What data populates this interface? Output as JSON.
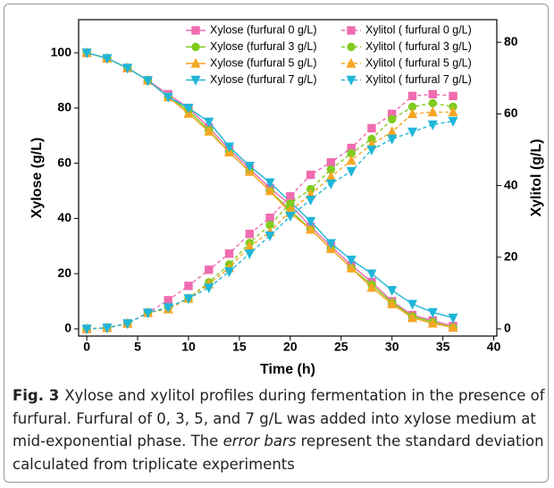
{
  "chart_data": {
    "type": "line",
    "xlabel": "Time (h)",
    "ylabel": "Xylose (g/L)",
    "y2label": "Xylitol (g/L)",
    "x": [
      0,
      2,
      4,
      6,
      8,
      10,
      12,
      14,
      16,
      18,
      20,
      22,
      24,
      26,
      28,
      30,
      32,
      34,
      36
    ],
    "xlim": [
      -0.8,
      40.3
    ],
    "xticks": [
      0,
      5,
      10,
      15,
      20,
      25,
      30,
      35,
      40
    ],
    "ylim": [
      -2.6,
      112
    ],
    "yticks": [
      0,
      20,
      40,
      60,
      80,
      100
    ],
    "y2lim": [
      -2,
      86.3
    ],
    "y2ticks": [
      0,
      20,
      40,
      60,
      80
    ],
    "series": [
      {
        "name": "Xylose (furfural 0 g/L)",
        "color": "#f06bb0",
        "marker": "square",
        "dash": false,
        "values": [
          100,
          98,
          94.5,
          90,
          85,
          80,
          73,
          65,
          58,
          51,
          45,
          37,
          30,
          23,
          17,
          10,
          5,
          3,
          1
        ]
      },
      {
        "name": "Xylose (furfural 3 g/L)",
        "color": "#7fcc1f",
        "marker": "circle",
        "dash": false,
        "values": [
          100,
          98,
          94.5,
          90,
          84,
          79,
          72,
          64,
          57,
          50,
          43,
          36,
          29,
          22,
          16,
          9.5,
          4.5,
          2.5,
          0.5
        ]
      },
      {
        "name": "Xylose (furfural 5 g/L)",
        "color": "#f5a623",
        "marker": "triangle-up",
        "dash": false,
        "values": [
          100,
          98,
          94.5,
          90,
          84,
          78,
          71.5,
          64,
          57,
          50,
          42,
          36,
          29,
          22,
          15,
          9,
          4,
          2,
          0.5
        ]
      },
      {
        "name": "Xylose (furfural 7 g/L)",
        "color": "#1fb6d8",
        "marker": "triangle-down",
        "dash": false,
        "values": [
          100,
          98,
          94.5,
          90,
          84,
          80,
          75,
          66,
          59,
          53,
          46,
          39,
          31,
          25,
          20,
          14,
          9,
          6,
          4
        ]
      },
      {
        "name": "Xylitol ( furfural 0 g/L)",
        "color": "#f06bb0",
        "marker": "square",
        "dash": true,
        "axis": "y2",
        "values": [
          0,
          0.3,
          1.5,
          4.5,
          8,
          12,
          16.5,
          21,
          26.5,
          31,
          37,
          43,
          46.5,
          50.5,
          56,
          60,
          65,
          65.5,
          65
        ]
      },
      {
        "name": "Xylitol ( furfural 3 g/L)",
        "color": "#7fcc1f",
        "marker": "circle",
        "dash": true,
        "axis": "y2",
        "values": [
          0,
          0.3,
          1.5,
          4.5,
          6,
          8.5,
          13,
          18,
          24,
          29,
          35,
          39,
          44.5,
          49,
          53,
          58.5,
          62,
          63,
          62
        ]
      },
      {
        "name": "Xylitol ( furfural 5 g/L)",
        "color": "#f5a623",
        "marker": "triangle-up",
        "dash": true,
        "axis": "y2",
        "values": [
          0,
          0.3,
          1.5,
          4.5,
          5.5,
          8.5,
          12.5,
          17,
          23,
          27,
          33,
          37.5,
          42.5,
          47,
          51.5,
          55,
          60,
          60.5,
          60.5
        ]
      },
      {
        "name": "Xylitol ( furfural 7 g/L)",
        "color": "#1fb6d8",
        "marker": "triangle-down",
        "dash": true,
        "axis": "y2",
        "values": [
          0,
          0.3,
          1.5,
          4.5,
          6,
          8.5,
          11.5,
          16,
          21,
          26,
          31.5,
          36,
          40.5,
          44,
          50,
          53,
          55,
          57,
          58
        ]
      }
    ]
  },
  "caption": {
    "label": "Fig. 3",
    "text_before": "Xylose and xylitol profiles during fermentation in the presence of furfural. Furfural of 0, 3, 5, and 7 g/L was added into xylose medium at mid-exponential phase. The ",
    "emphasis": "error bars",
    "text_after": " represent the standard deviation calculated from triplicate experiments"
  }
}
